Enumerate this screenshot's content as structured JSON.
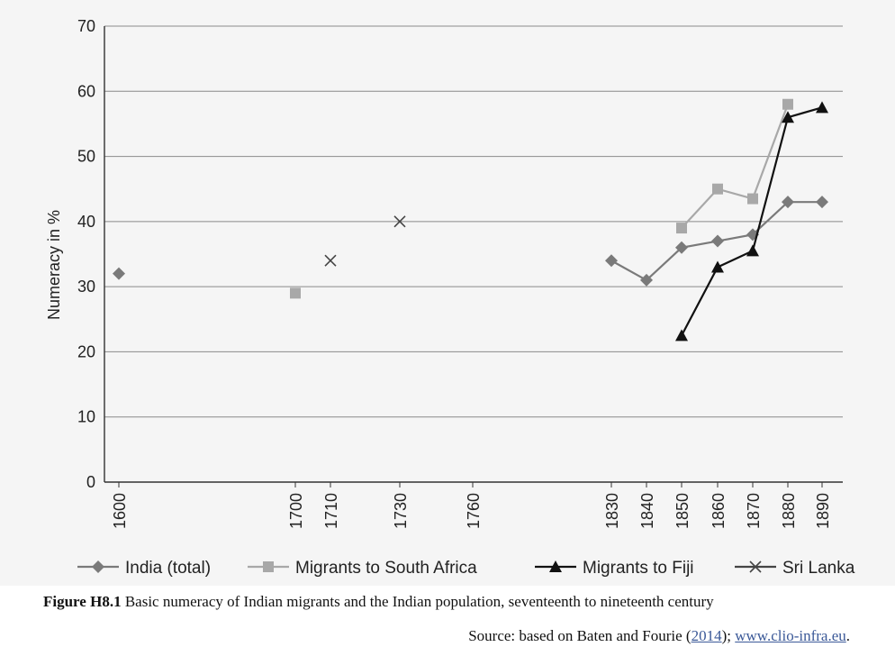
{
  "chart_data": {
    "type": "line",
    "ylabel": "Numeracy in %",
    "ylim": [
      0,
      70
    ],
    "yticks": [
      "0",
      "10",
      "20",
      "30",
      "40",
      "50",
      "60",
      "70"
    ],
    "xticks": [
      "1600",
      "1700",
      "1710",
      "1730",
      "1760",
      "1830",
      "1840",
      "1850",
      "1860",
      "1870",
      "1880",
      "1890"
    ],
    "grid": true,
    "legend_position": "bottom",
    "series": [
      {
        "name": "India (total)",
        "marker": "diamond",
        "color": "#7a7a7a",
        "segments": [
          [
            {
              "x": 1600,
              "y": 32
            }
          ],
          [
            {
              "x": 1830,
              "y": 34
            },
            {
              "x": 1840,
              "y": 31
            },
            {
              "x": 1850,
              "y": 36
            },
            {
              "x": 1860,
              "y": 37
            },
            {
              "x": 1870,
              "y": 38
            },
            {
              "x": 1880,
              "y": 43
            },
            {
              "x": 1890,
              "y": 43
            }
          ]
        ]
      },
      {
        "name": "Migrants to South Africa",
        "marker": "square",
        "color": "#a8a8a8",
        "segments": [
          [
            {
              "x": 1700,
              "y": 29
            }
          ],
          [
            {
              "x": 1850,
              "y": 39
            },
            {
              "x": 1860,
              "y": 45
            },
            {
              "x": 1870,
              "y": 43.5
            },
            {
              "x": 1880,
              "y": 58
            }
          ]
        ]
      },
      {
        "name": "Migrants to Fiji",
        "marker": "triangle",
        "color": "#111111",
        "segments": [
          [
            {
              "x": 1850,
              "y": 22.5
            },
            {
              "x": 1860,
              "y": 33
            },
            {
              "x": 1870,
              "y": 35.5
            },
            {
              "x": 1880,
              "y": 56
            },
            {
              "x": 1890,
              "y": 57.5
            }
          ]
        ]
      },
      {
        "name": "Sri Lanka",
        "marker": "x",
        "color": "#444444",
        "segments": [
          [
            {
              "x": 1710,
              "y": 34
            }
          ],
          [
            {
              "x": 1730,
              "y": 40
            }
          ]
        ]
      }
    ]
  },
  "caption": {
    "label": "Figure H8.1",
    "text": " Basic numeracy of Indian migrants and the Indian population, seventeenth to nineteenth century"
  },
  "source": {
    "prefix": "Source: based on Baten and Fourie (",
    "year": "2014",
    "middle": "); ",
    "url": "www.clio-infra.eu",
    "suffix": "."
  }
}
